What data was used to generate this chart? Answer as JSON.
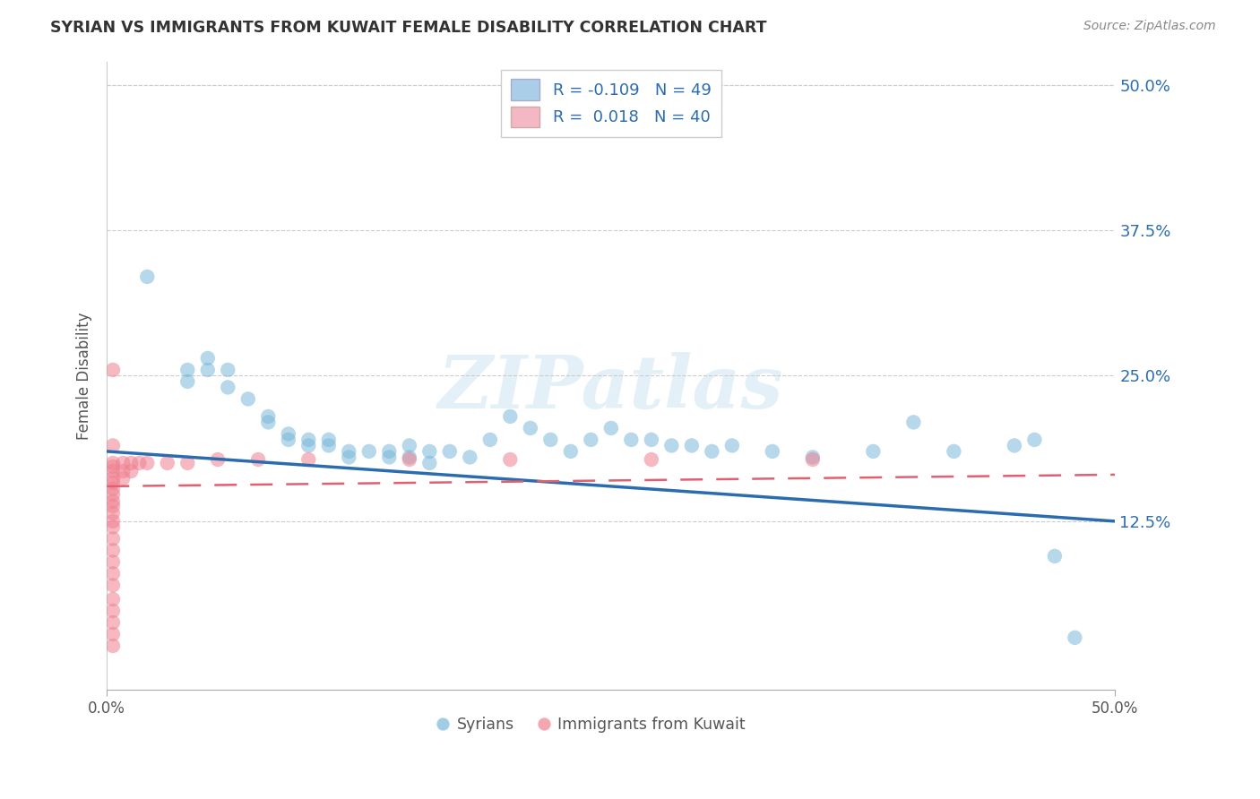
{
  "title": "SYRIAN VS IMMIGRANTS FROM KUWAIT FEMALE DISABILITY CORRELATION CHART",
  "source": "Source: ZipAtlas.com",
  "ylabel": "Female Disability",
  "xlim": [
    0.0,
    0.5
  ],
  "ylim": [
    -0.02,
    0.52
  ],
  "ytick_values": [
    0.125,
    0.25,
    0.375,
    0.5
  ],
  "xtick_values": [
    0.0,
    0.5
  ],
  "watermark_text": "ZIPatlas",
  "syrian_color": "#7ab8d9",
  "kuwait_color": "#f08090",
  "trend_syrian_color": "#2b6cb0",
  "trend_kuwait_color": "#e06070",
  "legend_patch_syrian": "#aacde8",
  "legend_patch_kuwait": "#f4b8c4",
  "legend_text_color": "#2b6cb0",
  "right_tick_color": "#2b6cb0",
  "syrian_scatter": [
    [
      0.02,
      0.335
    ],
    [
      0.04,
      0.255
    ],
    [
      0.04,
      0.245
    ],
    [
      0.05,
      0.265
    ],
    [
      0.05,
      0.255
    ],
    [
      0.06,
      0.255
    ],
    [
      0.06,
      0.24
    ],
    [
      0.07,
      0.23
    ],
    [
      0.08,
      0.21
    ],
    [
      0.08,
      0.215
    ],
    [
      0.09,
      0.2
    ],
    [
      0.09,
      0.195
    ],
    [
      0.1,
      0.195
    ],
    [
      0.1,
      0.19
    ],
    [
      0.11,
      0.195
    ],
    [
      0.11,
      0.19
    ],
    [
      0.12,
      0.185
    ],
    [
      0.12,
      0.18
    ],
    [
      0.13,
      0.185
    ],
    [
      0.14,
      0.185
    ],
    [
      0.14,
      0.18
    ],
    [
      0.15,
      0.19
    ],
    [
      0.15,
      0.18
    ],
    [
      0.16,
      0.185
    ],
    [
      0.16,
      0.175
    ],
    [
      0.17,
      0.185
    ],
    [
      0.18,
      0.18
    ],
    [
      0.19,
      0.195
    ],
    [
      0.2,
      0.215
    ],
    [
      0.21,
      0.205
    ],
    [
      0.22,
      0.195
    ],
    [
      0.23,
      0.185
    ],
    [
      0.24,
      0.195
    ],
    [
      0.25,
      0.205
    ],
    [
      0.26,
      0.195
    ],
    [
      0.27,
      0.195
    ],
    [
      0.28,
      0.19
    ],
    [
      0.29,
      0.19
    ],
    [
      0.3,
      0.185
    ],
    [
      0.31,
      0.19
    ],
    [
      0.33,
      0.185
    ],
    [
      0.35,
      0.18
    ],
    [
      0.38,
      0.185
    ],
    [
      0.4,
      0.21
    ],
    [
      0.42,
      0.185
    ],
    [
      0.45,
      0.19
    ],
    [
      0.46,
      0.195
    ],
    [
      0.47,
      0.095
    ],
    [
      0.48,
      0.025
    ]
  ],
  "kuwait_scatter": [
    [
      0.003,
      0.255
    ],
    [
      0.003,
      0.19
    ],
    [
      0.003,
      0.175
    ],
    [
      0.003,
      0.172
    ],
    [
      0.003,
      0.168
    ],
    [
      0.003,
      0.162
    ],
    [
      0.003,
      0.158
    ],
    [
      0.003,
      0.153
    ],
    [
      0.003,
      0.148
    ],
    [
      0.003,
      0.142
    ],
    [
      0.003,
      0.138
    ],
    [
      0.003,
      0.132
    ],
    [
      0.003,
      0.125
    ],
    [
      0.003,
      0.12
    ],
    [
      0.003,
      0.11
    ],
    [
      0.003,
      0.1
    ],
    [
      0.003,
      0.09
    ],
    [
      0.003,
      0.08
    ],
    [
      0.003,
      0.07
    ],
    [
      0.003,
      0.058
    ],
    [
      0.003,
      0.048
    ],
    [
      0.003,
      0.038
    ],
    [
      0.003,
      0.028
    ],
    [
      0.003,
      0.018
    ],
    [
      0.008,
      0.175
    ],
    [
      0.008,
      0.168
    ],
    [
      0.008,
      0.162
    ],
    [
      0.012,
      0.175
    ],
    [
      0.012,
      0.168
    ],
    [
      0.016,
      0.175
    ],
    [
      0.02,
      0.175
    ],
    [
      0.03,
      0.175
    ],
    [
      0.04,
      0.175
    ],
    [
      0.055,
      0.178
    ],
    [
      0.075,
      0.178
    ],
    [
      0.1,
      0.178
    ],
    [
      0.15,
      0.178
    ],
    [
      0.2,
      0.178
    ],
    [
      0.27,
      0.178
    ],
    [
      0.35,
      0.178
    ]
  ]
}
